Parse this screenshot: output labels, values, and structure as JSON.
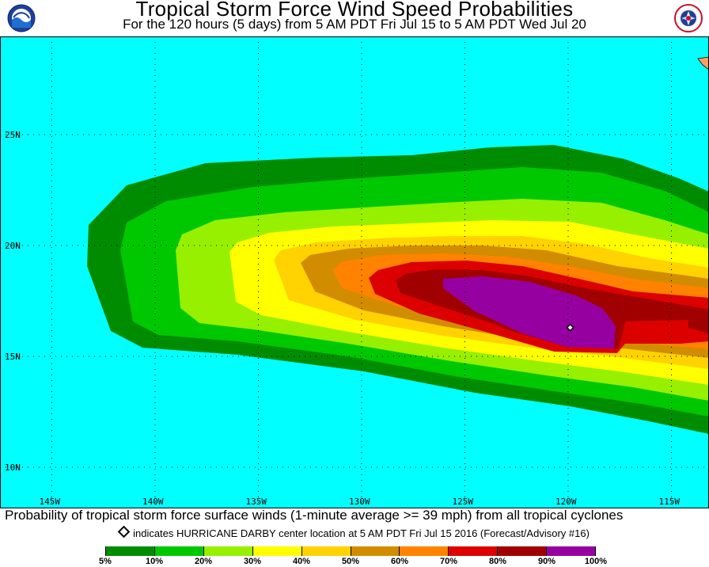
{
  "header": {
    "title": "Tropical Storm Force Wind Speed Probabilities",
    "subtitle": "For the 120 hours (5 days) from 5 AM PDT Fri Jul 15 to 5 AM PDT Wed Jul 20"
  },
  "logos": {
    "left": "noaa-logo",
    "right": "nws-logo"
  },
  "map": {
    "ocean_color": "#00ffff",
    "land_color": "#ffa060",
    "lat_labels": [
      "25N",
      "20N",
      "15N",
      "10N"
    ],
    "lon_labels": [
      "145W",
      "140W",
      "135W",
      "130W",
      "125W",
      "120W",
      "115W"
    ],
    "storm_marker": {
      "name": "HURRICANE DARBY",
      "lon": -119.9,
      "lat": 16.3
    }
  },
  "footer": {
    "caption": "Probability of tropical storm force surface winds (1-minute average >= 39 mph) from all tropical cyclones",
    "marker_note": "indicates HURRICANE DARBY center location at 5 AM PDT Fri Jul 15 2016 (Forecast/Advisory #16)"
  },
  "legend": {
    "colors": [
      "#008c00",
      "#00c800",
      "#96f000",
      "#ffff00",
      "#ffd200",
      "#d28c00",
      "#ff8200",
      "#dc0000",
      "#a00000",
      "#9600a0"
    ],
    "labels": [
      "5%",
      "10%",
      "20%",
      "30%",
      "40%",
      "50%",
      "60%",
      "70%",
      "80%",
      "90%",
      "100%"
    ]
  }
}
